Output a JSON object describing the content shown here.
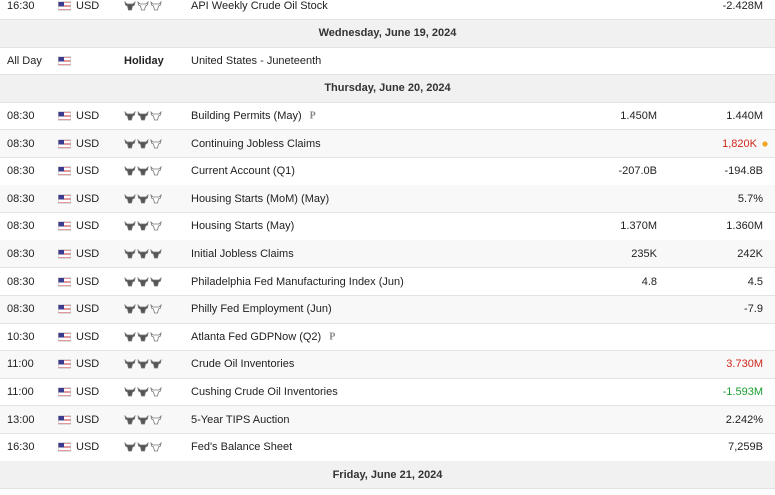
{
  "rows": [
    {
      "time": "16:30",
      "currency": "USD",
      "importance": 1,
      "event": "API Weekly Crude Oil Stock",
      "actual": "-2.428M"
    },
    {
      "date": "Wednesday, June 19, 2024"
    },
    {
      "time": "All Day",
      "holiday": "Holiday",
      "event": "United States - Juneteenth"
    },
    {
      "date": "Thursday, June 20, 2024"
    },
    {
      "time": "08:30",
      "currency": "USD",
      "importance": 2,
      "event": "Building Permits (May)",
      "flag": "P",
      "forecast": "1.450M",
      "actual": "1.440M"
    },
    {
      "time": "08:30",
      "currency": "USD",
      "importance": 2,
      "event": "Continuing Jobless Claims",
      "actual": "1,820K",
      "actual_color": "#d0271d",
      "dot_color": "#f5a623"
    },
    {
      "time": "08:30",
      "currency": "USD",
      "importance": 2,
      "event": "Current Account (Q1)",
      "forecast": "-207.0B",
      "actual": "-194.8B"
    },
    {
      "time": "08:30",
      "currency": "USD",
      "importance": 2,
      "event": "Housing Starts (MoM) (May)",
      "actual": "5.7%"
    },
    {
      "time": "08:30",
      "currency": "USD",
      "importance": 2,
      "event": "Housing Starts (May)",
      "forecast": "1.370M",
      "actual": "1.360M"
    },
    {
      "time": "08:30",
      "currency": "USD",
      "importance": 3,
      "event": "Initial Jobless Claims",
      "forecast": "235K",
      "actual": "242K"
    },
    {
      "time": "08:30",
      "currency": "USD",
      "importance": 3,
      "event": "Philadelphia Fed Manufacturing Index (Jun)",
      "forecast": "4.8",
      "actual": "4.5"
    },
    {
      "time": "08:30",
      "currency": "USD",
      "importance": 2,
      "event": "Philly Fed Employment (Jun)",
      "actual": "-7.9"
    },
    {
      "time": "10:30",
      "currency": "USD",
      "importance": 2,
      "event": "Atlanta Fed GDPNow (Q2)",
      "flag": "P"
    },
    {
      "time": "11:00",
      "currency": "USD",
      "importance": 3,
      "event": "Crude Oil Inventories",
      "actual": "3.730M",
      "actual_color": "#d0271d"
    },
    {
      "time": "11:00",
      "currency": "USD",
      "importance": 2,
      "event": "Cushing Crude Oil Inventories",
      "actual": "-1.593M",
      "actual_color": "#1a9e2f"
    },
    {
      "time": "13:00",
      "currency": "USD",
      "importance": 2,
      "event": "5-Year TIPS Auction",
      "actual": "2.242%"
    },
    {
      "time": "16:30",
      "currency": "USD",
      "importance": 2,
      "event": "Fed's Balance Sheet",
      "actual": "7,259B"
    },
    {
      "date": "Friday, June 21, 2024"
    }
  ]
}
